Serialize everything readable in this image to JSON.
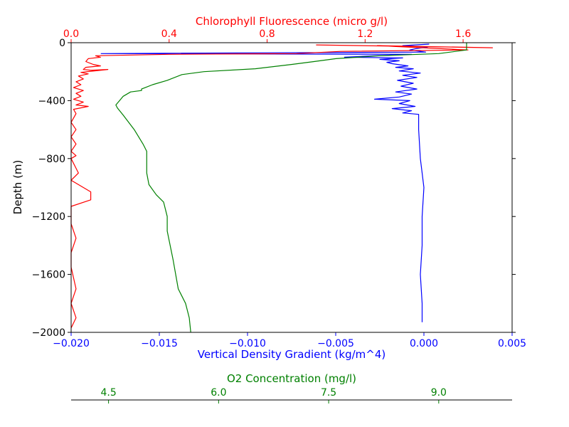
{
  "chart_data": {
    "type": "line",
    "colors": {
      "density": "#0000ff",
      "chlorophyll": "#ff0000",
      "oxygen": "#008000",
      "frame": "#000000"
    },
    "axes": {
      "depth": {
        "label": "Depth (m)",
        "range": [
          -2000,
          0
        ],
        "ticks": [
          0,
          -400,
          -800,
          -1200,
          -1600,
          -2000
        ],
        "tick_labels": [
          "0",
          "−400",
          "−800",
          "−1200",
          "−1600",
          "−2000"
        ],
        "color": "#000000"
      },
      "density": {
        "label": "Vertical Density Gradient (kg/m^4)",
        "range": [
          -0.02,
          0.005
        ],
        "ticks": [
          -0.02,
          -0.015,
          -0.01,
          -0.005,
          0.0,
          0.005
        ],
        "tick_labels": [
          "−0.020",
          "−0.015",
          "−0.010",
          "−0.005",
          "0.000",
          "0.005"
        ],
        "color": "#0000ff"
      },
      "chlorophyll": {
        "label": "Chlorophyll Fluorescence (micro g/l)",
        "range": [
          0.0,
          1.8
        ],
        "ticks": [
          0.0,
          0.4,
          0.8,
          1.2,
          1.6
        ],
        "tick_labels": [
          "0.0",
          "0.4",
          "0.8",
          "1.2",
          "1.6"
        ],
        "color": "#ff0000"
      },
      "oxygen": {
        "label": "O2 Concentration (mg/l)",
        "range": [
          3.99,
          10.0
        ],
        "ticks": [
          4.5,
          6.0,
          7.5,
          9.0
        ],
        "tick_labels": [
          "4.5",
          "6.0",
          "7.5",
          "9.0"
        ],
        "color": "#008000"
      }
    },
    "series": [
      {
        "key": "density",
        "points": [
          [
            0.0003,
            -10
          ],
          [
            -0.0012,
            -20
          ],
          [
            0.0002,
            -30
          ],
          [
            -0.0004,
            -40
          ],
          [
            -0.0008,
            -50
          ],
          [
            -0.0002,
            -60
          ],
          [
            0.0001,
            -65
          ],
          [
            -0.0183,
            -75
          ],
          [
            -0.0007,
            -80
          ],
          [
            -0.0028,
            -90
          ],
          [
            -0.0045,
            -100
          ],
          [
            -0.0012,
            -105
          ],
          [
            -0.0025,
            -115
          ],
          [
            -0.0014,
            -125
          ],
          [
            -0.0021,
            -135
          ],
          [
            -0.0018,
            -145
          ],
          [
            -0.0009,
            -160
          ],
          [
            -0.0016,
            -170
          ],
          [
            -0.0006,
            -180
          ],
          [
            -0.0014,
            -195
          ],
          [
            -0.0002,
            -210
          ],
          [
            -0.0012,
            -225
          ],
          [
            -0.0004,
            -240
          ],
          [
            -0.0015,
            -260
          ],
          [
            -0.0006,
            -280
          ],
          [
            -0.0013,
            -300
          ],
          [
            -0.0004,
            -320
          ],
          [
            -0.0016,
            -340
          ],
          [
            -0.0007,
            -355
          ],
          [
            -0.0014,
            -375
          ],
          [
            -0.0028,
            -390
          ],
          [
            -0.0008,
            -400
          ],
          [
            -0.0014,
            -420
          ],
          [
            -0.0005,
            -440
          ],
          [
            -0.0018,
            -455
          ],
          [
            -0.0007,
            -470
          ],
          [
            -0.0012,
            -485
          ],
          [
            -0.0003,
            -495
          ],
          [
            -0.0003,
            -600
          ],
          [
            -0.0002,
            -800
          ],
          [
            -0.0001,
            -900
          ],
          [
            0.0,
            -1000
          ],
          [
            -0.0001,
            -1200
          ],
          [
            -0.0001,
            -1400
          ],
          [
            -0.0002,
            -1600
          ],
          [
            -0.0001,
            -1800
          ],
          [
            -0.0001,
            -1930
          ]
        ]
      },
      {
        "key": "chlorophyll",
        "points": [
          [
            1.0,
            -15
          ],
          [
            1.72,
            -35
          ],
          [
            1.25,
            -20
          ],
          [
            1.62,
            -50
          ],
          [
            1.1,
            -60
          ],
          [
            0.92,
            -75
          ],
          [
            0.4,
            -80
          ],
          [
            0.1,
            -90
          ],
          [
            0.12,
            -100
          ],
          [
            0.07,
            -110
          ],
          [
            0.06,
            -130
          ],
          [
            0.09,
            -150
          ],
          [
            0.12,
            -160
          ],
          [
            0.06,
            -170
          ],
          [
            0.05,
            -185
          ],
          [
            0.08,
            -190
          ],
          [
            0.15,
            -185
          ],
          [
            0.04,
            -205
          ],
          [
            0.07,
            -215
          ],
          [
            0.03,
            -230
          ],
          [
            0.05,
            -250
          ],
          [
            0.02,
            -270
          ],
          [
            0.04,
            -290
          ],
          [
            0.01,
            -310
          ],
          [
            0.05,
            -330
          ],
          [
            0.02,
            -350
          ],
          [
            0.04,
            -370
          ],
          [
            0.01,
            -390
          ],
          [
            0.05,
            -410
          ],
          [
            0.02,
            -430
          ],
          [
            0.07,
            -440
          ],
          [
            0.01,
            -460
          ],
          [
            0.02,
            -490
          ],
          [
            0.0,
            -550
          ],
          [
            0.02,
            -600
          ],
          [
            0.0,
            -650
          ],
          [
            0.02,
            -700
          ],
          [
            0.0,
            -750
          ],
          [
            0.02,
            -780
          ],
          [
            0.0,
            -800
          ],
          [
            0.03,
            -900
          ],
          [
            0.0,
            -950
          ],
          [
            0.08,
            -1030
          ],
          [
            0.08,
            -1085
          ],
          [
            0.0,
            -1130
          ],
          [
            0.0,
            -1250
          ],
          [
            0.02,
            -1350
          ],
          [
            0.0,
            -1450
          ],
          [
            0.0,
            -1550
          ],
          [
            0.02,
            -1700
          ],
          [
            0.0,
            -1800
          ],
          [
            0.02,
            -1900
          ],
          [
            0.0,
            -1970
          ]
        ]
      },
      {
        "key": "oxygen",
        "points": [
          [
            9.38,
            0
          ],
          [
            9.38,
            -50
          ],
          [
            9.0,
            -75
          ],
          [
            8.2,
            -90
          ],
          [
            7.6,
            -110
          ],
          [
            7.3,
            -130
          ],
          [
            7.0,
            -150
          ],
          [
            6.5,
            -180
          ],
          [
            5.8,
            -200
          ],
          [
            5.5,
            -220
          ],
          [
            5.3,
            -260
          ],
          [
            5.1,
            -290
          ],
          [
            5.0,
            -310
          ],
          [
            4.95,
            -320
          ],
          [
            4.95,
            -330
          ],
          [
            4.8,
            -340
          ],
          [
            4.7,
            -370
          ],
          [
            4.65,
            -400
          ],
          [
            4.6,
            -430
          ],
          [
            4.62,
            -450
          ],
          [
            4.7,
            -500
          ],
          [
            4.85,
            -600
          ],
          [
            4.97,
            -700
          ],
          [
            5.02,
            -750
          ],
          [
            5.02,
            -900
          ],
          [
            5.05,
            -980
          ],
          [
            5.15,
            -1050
          ],
          [
            5.25,
            -1100
          ],
          [
            5.3,
            -1200
          ],
          [
            5.3,
            -1300
          ],
          [
            5.38,
            -1500
          ],
          [
            5.45,
            -1700
          ],
          [
            5.55,
            -1800
          ],
          [
            5.6,
            -1900
          ],
          [
            5.62,
            -2000
          ]
        ]
      }
    ]
  }
}
